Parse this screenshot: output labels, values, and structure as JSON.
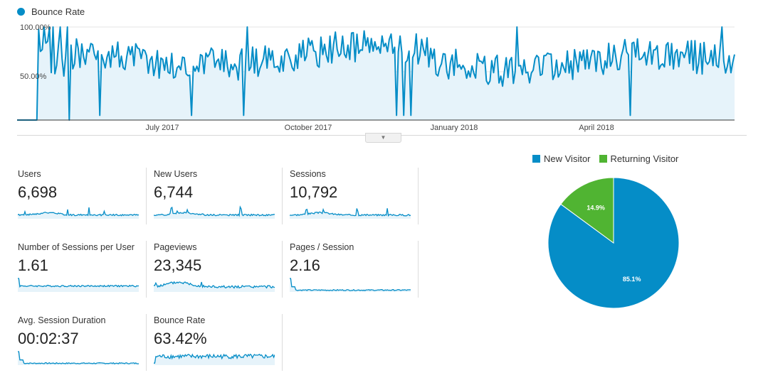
{
  "main_chart": {
    "legend_label": "Bounce Rate",
    "color": "#058dc7",
    "fill": "#e6f3fa",
    "y_ticks": [
      "100.00%",
      "50.00%"
    ],
    "x_ticks": [
      "July 2017",
      "October 2017",
      "January 2018",
      "April 2018"
    ]
  },
  "metrics": [
    {
      "label": "Users",
      "value": "6,698"
    },
    {
      "label": "New Users",
      "value": "6,744"
    },
    {
      "label": "Sessions",
      "value": "10,792"
    },
    {
      "label": "Number of Sessions per User",
      "value": "1.61"
    },
    {
      "label": "Pageviews",
      "value": "23,345"
    },
    {
      "label": "Pages / Session",
      "value": "2.16"
    },
    {
      "label": "Avg. Session Duration",
      "value": "00:02:37"
    },
    {
      "label": "Bounce Rate",
      "value": "63.42%"
    }
  ],
  "chart_data": {
    "type": "pie",
    "categories": [
      "New Visitor",
      "Returning Visitor"
    ],
    "values": [
      85.1,
      14.9
    ],
    "labels": [
      "85.1%",
      "14.9%"
    ],
    "colors": [
      "#058dc7",
      "#50b432"
    ],
    "legend_position": "top"
  }
}
